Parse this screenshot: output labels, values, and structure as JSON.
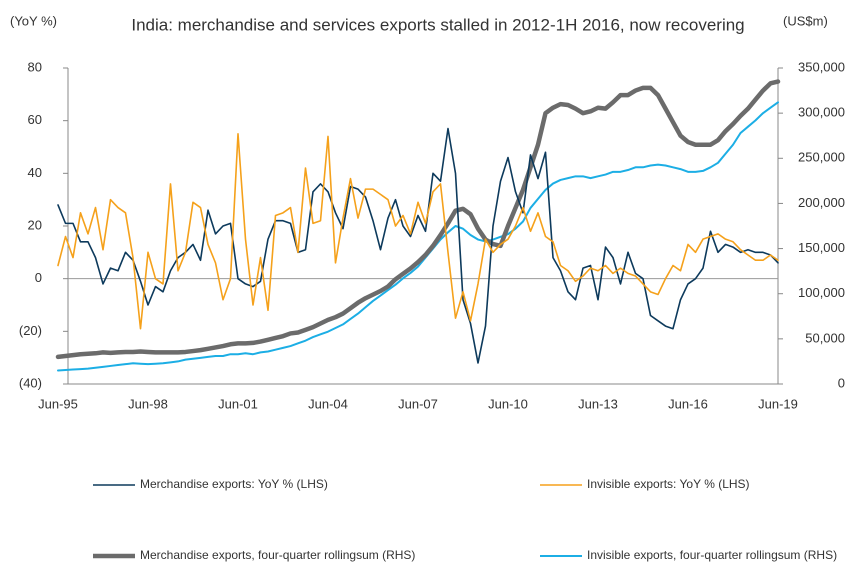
{
  "chart_data": {
    "type": "line",
    "title": "India: merchandise and services exports stalled in  2012-1H 2016, now recovering",
    "ylabel": "(YoY %)",
    "y2label": "(US$m)",
    "categories": [
      "Jun-95",
      null,
      null,
      null,
      null,
      null,
      null,
      null,
      null,
      null,
      null,
      null,
      "Jun-98",
      null,
      null,
      null,
      null,
      null,
      null,
      null,
      null,
      null,
      null,
      null,
      "Jun-01",
      null,
      null,
      null,
      null,
      null,
      null,
      null,
      null,
      null,
      null,
      null,
      "Jun-04",
      null,
      null,
      null,
      null,
      null,
      null,
      null,
      null,
      null,
      null,
      null,
      "Jun-07",
      null,
      null,
      null,
      null,
      null,
      null,
      null,
      null,
      null,
      null,
      null,
      "Jun-10",
      null,
      null,
      null,
      null,
      null,
      null,
      null,
      null,
      null,
      null,
      null,
      "Jun-13",
      null,
      null,
      null,
      null,
      null,
      null,
      null,
      null,
      null,
      null,
      null,
      "Jun-16",
      null,
      null,
      null,
      null,
      null,
      null,
      null,
      null,
      null,
      null,
      null,
      "Jun-19"
    ],
    "ylim": [
      -40,
      80
    ],
    "yticks": [
      {
        "value": -40,
        "label": "(40)"
      },
      {
        "value": -20,
        "label": "(20)"
      },
      0,
      20,
      40,
      60,
      80
    ],
    "y2lim": [
      0,
      350000
    ],
    "y2ticks": [
      0,
      {
        "value": 50000,
        "label": "50,000"
      },
      {
        "value": 100000,
        "label": "100,000"
      },
      {
        "value": 150000,
        "label": "150,000"
      },
      {
        "value": 200000,
        "label": "200,000"
      },
      {
        "value": 250000,
        "label": "250,000"
      },
      {
        "value": 300000,
        "label": "300,000"
      },
      {
        "value": 350000,
        "label": "350,000"
      }
    ],
    "series": [
      {
        "name": "Merchandise exports: YoY % (LHS)",
        "color": "#0d3a5c",
        "axis": "y",
        "width": 1.6,
        "values": [
          28,
          21,
          21,
          14,
          14,
          8,
          -2,
          4,
          3,
          10,
          7,
          -1,
          -10,
          -3,
          -5,
          3,
          8,
          10,
          13,
          7,
          26,
          17,
          20,
          21,
          0,
          -2,
          -3,
          -1,
          15,
          22,
          22,
          21,
          10,
          11,
          33,
          36,
          33,
          25,
          19,
          35,
          34,
          31,
          22,
          11,
          23,
          30,
          20,
          16,
          24,
          18,
          40,
          37,
          57,
          40,
          -8,
          -17,
          -32,
          -18,
          20,
          37,
          46,
          33,
          25,
          47,
          38,
          48,
          8,
          3,
          -5,
          -8,
          4,
          5,
          -8,
          12,
          8,
          -2,
          10,
          2,
          0,
          -14,
          -16,
          -18,
          -19,
          -8,
          -2,
          0,
          4,
          18,
          10,
          13,
          12,
          10,
          11,
          10,
          10,
          9,
          6
        ]
      },
      {
        "name": "Invisible exports: YoY % (LHS)",
        "color": "#f5a11b",
        "axis": "y",
        "width": 1.6,
        "values": [
          5,
          16,
          8,
          25,
          17,
          27,
          11,
          30,
          27,
          25,
          8,
          -19,
          10,
          0,
          -2,
          36,
          3,
          10,
          29,
          27,
          13,
          6,
          -8,
          0,
          55,
          15,
          -10,
          8,
          -12,
          24,
          25,
          27,
          10,
          42,
          21,
          22,
          54,
          6,
          23,
          38,
          23,
          34,
          34,
          32,
          30,
          20,
          24,
          17,
          29,
          21,
          33,
          36,
          10,
          -15,
          -5,
          -16,
          -2,
          15,
          10,
          13,
          15,
          20,
          27,
          18,
          25,
          16,
          14,
          5,
          3,
          -1,
          1,
          4,
          3,
          5,
          2,
          4,
          2,
          1,
          -2,
          -5,
          -6,
          0,
          5,
          3,
          13,
          10,
          15,
          16,
          17,
          15,
          14,
          11,
          9,
          7,
          7,
          9,
          7
        ]
      },
      {
        "name": "Merchandise exports, four-quarter rollingsum (RHS)",
        "color": "#6b6b6b",
        "axis": "y2",
        "width": 4.5,
        "values": [
          30000,
          31000,
          32000,
          33000,
          33500,
          34000,
          35000,
          34500,
          35000,
          35500,
          35500,
          36000,
          35500,
          35000,
          35000,
          35000,
          35000,
          35500,
          36500,
          37500,
          39000,
          40500,
          42000,
          44000,
          45000,
          45000,
          45500,
          47000,
          49000,
          51000,
          53000,
          56000,
          57000,
          60000,
          63000,
          67000,
          71000,
          74000,
          78000,
          84000,
          90000,
          95000,
          99000,
          103000,
          108000,
          116000,
          122000,
          128000,
          135000,
          143000,
          153000,
          165000,
          178000,
          192000,
          194000,
          188000,
          172000,
          160000,
          155000,
          153000,
          175000,
          195000,
          215000,
          240000,
          265000,
          300000,
          306000,
          310000,
          309000,
          305000,
          300000,
          302000,
          306000,
          305000,
          312000,
          320000,
          320000,
          325000,
          328000,
          328000,
          320000,
          305000,
          290000,
          275000,
          268000,
          265000,
          265000,
          265000,
          270000,
          280000,
          288000,
          297000,
          305000,
          315000,
          325000,
          333000,
          335000
        ]
      },
      {
        "name": "Invisible exports, four-quarter rollingsum (RHS)",
        "color": "#1caee5",
        "axis": "y2",
        "width": 2,
        "values": [
          15000,
          15500,
          16000,
          16500,
          17000,
          18000,
          19000,
          20000,
          21000,
          22000,
          23000,
          22500,
          22000,
          22500,
          23000,
          24000,
          25000,
          27000,
          28000,
          29000,
          30000,
          31000,
          31000,
          33000,
          33000,
          34000,
          33000,
          35000,
          36000,
          38000,
          40000,
          42000,
          45000,
          48000,
          52000,
          55000,
          58000,
          62000,
          66000,
          72000,
          78000,
          85000,
          92000,
          98000,
          104000,
          110000,
          117000,
          123000,
          130000,
          140000,
          150000,
          160000,
          168000,
          175000,
          172000,
          165000,
          160000,
          158000,
          160000,
          163000,
          166000,
          172000,
          180000,
          195000,
          205000,
          215000,
          222000,
          226000,
          228000,
          230000,
          230000,
          228000,
          230000,
          232000,
          235000,
          235000,
          237000,
          240000,
          240000,
          242000,
          243000,
          242000,
          240000,
          238000,
          235000,
          235000,
          236000,
          240000,
          245000,
          255000,
          265000,
          278000,
          285000,
          292000,
          300000,
          306000,
          312000
        ]
      }
    ]
  }
}
